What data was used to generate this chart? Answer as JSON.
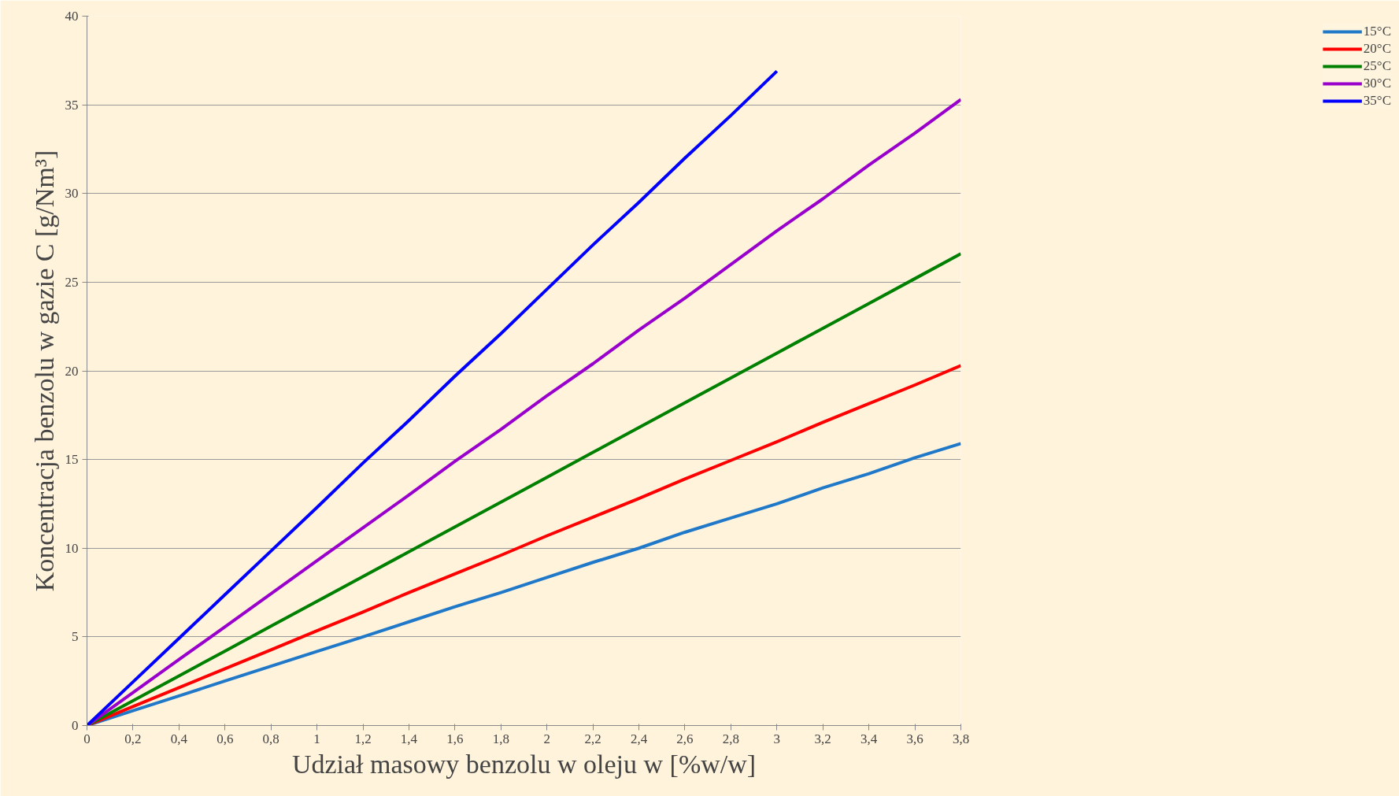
{
  "chart_data": {
    "type": "line",
    "xlabel": "Udział masowy benzolu w oleju w [%w/w]",
    "ylabel": "Koncentracja benzolu w gazie C [g/Nm³]",
    "x": [
      0,
      0.2,
      0.4,
      0.6,
      0.8,
      1,
      1.2,
      1.4,
      1.6,
      1.8,
      2,
      2.2,
      2.4,
      2.6,
      2.8,
      3,
      3.2,
      3.4,
      3.6,
      3.8
    ],
    "series": [
      {
        "name": "15°C",
        "color": "#1f78c8",
        "values": [
          0,
          0.84,
          1.67,
          2.51,
          3.35,
          4.18,
          5.0,
          5.85,
          6.7,
          7.5,
          8.35,
          9.2,
          10.0,
          10.9,
          11.7,
          12.5,
          13.4,
          14.2,
          15.1,
          15.9
        ]
      },
      {
        "name": "20°C",
        "color": "#ff0000",
        "values": [
          0,
          1.07,
          2.14,
          3.2,
          4.27,
          5.34,
          6.4,
          7.5,
          8.55,
          9.6,
          10.7,
          11.75,
          12.8,
          13.9,
          14.95,
          16.0,
          17.1,
          18.15,
          19.2,
          20.3
        ]
      },
      {
        "name": "25°C",
        "color": "#008000",
        "values": [
          0,
          1.4,
          2.8,
          4.2,
          5.6,
          7.0,
          8.4,
          9.8,
          11.2,
          12.6,
          14.0,
          15.4,
          16.8,
          18.2,
          19.6,
          21.0,
          22.4,
          23.8,
          25.2,
          26.6
        ]
      },
      {
        "name": "30°C",
        "color": "#9900cc",
        "values": [
          0,
          1.86,
          3.72,
          5.57,
          7.43,
          9.29,
          11.15,
          13.0,
          14.9,
          16.7,
          18.6,
          20.4,
          22.3,
          24.1,
          26.0,
          27.9,
          29.7,
          31.6,
          33.4,
          35.3
        ]
      },
      {
        "name": "35°C",
        "color": "#0000ff",
        "x": [
          0,
          0.2,
          0.4,
          0.6,
          0.8,
          1,
          1.2,
          1.4,
          1.6,
          1.8,
          2,
          2.2,
          2.4,
          2.6,
          2.8,
          3
        ],
        "values": [
          0,
          2.46,
          4.92,
          7.38,
          9.84,
          12.3,
          14.8,
          17.2,
          19.7,
          22.1,
          24.6,
          27.1,
          29.5,
          32.0,
          34.4,
          36.9
        ]
      }
    ],
    "xlim": [
      0,
      3.8
    ],
    "ylim": [
      0,
      40
    ],
    "xticks": [
      0,
      {
        "value": 0.2,
        "label": "0,2"
      },
      {
        "value": 0.4,
        "label": "0,4"
      },
      {
        "value": 0.6,
        "label": "0,6"
      },
      {
        "value": 0.8,
        "label": "0,8"
      },
      1,
      {
        "value": 1.2,
        "label": "1,2"
      },
      {
        "value": 1.4,
        "label": "1,4"
      },
      {
        "value": 1.6,
        "label": "1,6"
      },
      {
        "value": 1.8,
        "label": "1,8"
      },
      2,
      {
        "value": 2.2,
        "label": "2,2"
      },
      {
        "value": 2.4,
        "label": "2,4"
      },
      {
        "value": 2.6,
        "label": "2,6"
      },
      {
        "value": 2.8,
        "label": "2,8"
      },
      3,
      {
        "value": 3.2,
        "label": "3,2"
      },
      {
        "value": 3.4,
        "label": "3,4"
      },
      {
        "value": 3.6,
        "label": "3,6"
      },
      {
        "value": 3.8,
        "label": "3,8"
      }
    ],
    "yticks": [
      0,
      5,
      10,
      15,
      20,
      25,
      30,
      35,
      40
    ],
    "grid": "y",
    "legend": "right",
    "marker": "none",
    "line_style": "solid"
  }
}
